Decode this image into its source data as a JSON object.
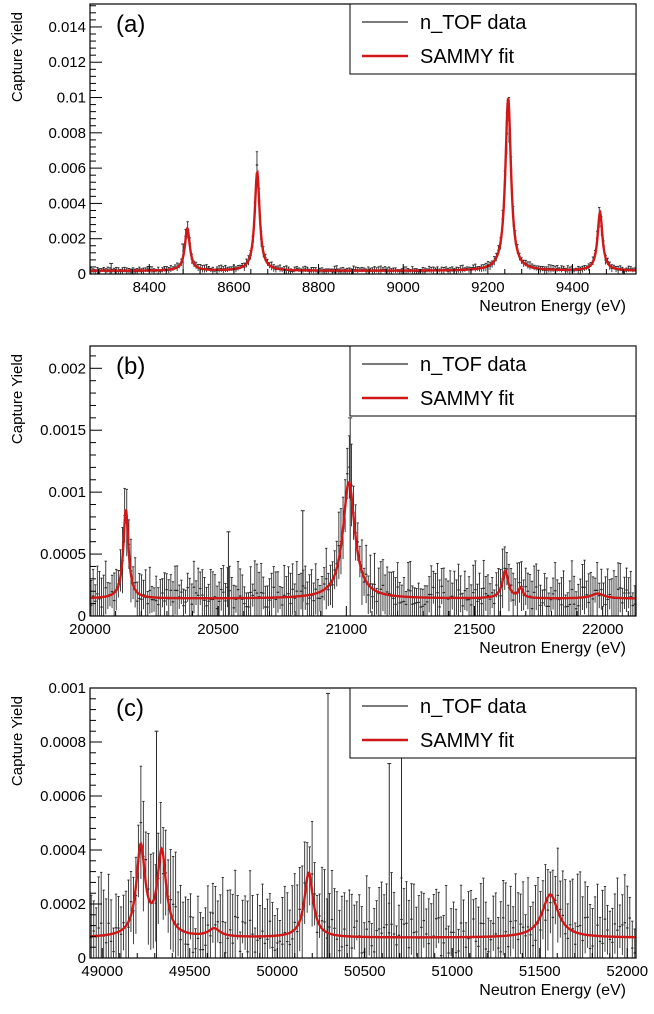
{
  "colors": {
    "data": "#2b2b2b",
    "fit": "#d01818",
    "axis": "#000000",
    "background": "#ffffff"
  },
  "chart_data": [
    {
      "type": "line",
      "panel_label": "(a)",
      "xlabel": "Neutron Energy (eV)",
      "ylabel": "Capture Yield",
      "xlim": [
        8260,
        9550
      ],
      "ylim": [
        0,
        0.0153
      ],
      "x_ticks": [
        8400,
        8600,
        8800,
        9000,
        9200,
        9400
      ],
      "x_tick_labels": [
        "8400",
        "8600",
        "8800",
        "9000",
        "9200",
        "9400"
      ],
      "y_ticks": [
        0,
        0.002,
        0.004,
        0.006,
        0.008,
        0.01,
        0.012,
        0.014
      ],
      "y_tick_labels": [
        "0",
        "0.002",
        "0.004",
        "0.006",
        "0.008",
        "0.01",
        "0.012",
        "0.014"
      ],
      "legend": {
        "position": "top-right",
        "entries": [
          {
            "label": "n_TOF data",
            "style": "thin-black"
          },
          {
            "label": "SAMMY fit",
            "style": "thick-red"
          }
        ]
      },
      "series": [
        {
          "name": "SAMMY fit",
          "baseline": 0.00018,
          "resonances": [
            {
              "energy": 8490,
              "peak_yield": 0.0024,
              "width": 7
            },
            {
              "energy": 8655,
              "peak_yield": 0.0056,
              "width": 7
            },
            {
              "energy": 9248,
              "peak_yield": 0.0098,
              "width": 8
            },
            {
              "energy": 9465,
              "peak_yield": 0.0033,
              "width": 7
            }
          ]
        },
        {
          "name": "n_TOF data",
          "n_points": 260,
          "noise_level": 0.0001,
          "outliers": [
            {
              "x": 8480,
              "y": 0.0017
            },
            {
              "x": 8310,
              "y": 0.0006
            }
          ]
        }
      ]
    },
    {
      "type": "line",
      "panel_label": "(b)",
      "xlabel": "Neutron Energy (eV)",
      "ylabel": "Capture Yield",
      "xlim": [
        20000,
        22130
      ],
      "ylim": [
        0,
        0.00218
      ],
      "x_ticks": [
        20000,
        20500,
        21000,
        21500,
        22000
      ],
      "x_tick_labels": [
        "20000",
        "20500",
        "21000",
        "21500",
        "22000"
      ],
      "y_ticks": [
        0,
        0.0005,
        0.001,
        0.0015,
        0.002
      ],
      "y_tick_labels": [
        "0",
        "0.0005",
        "0.001",
        "0.0015",
        "0.002"
      ],
      "legend": {
        "position": "top-right",
        "entries": [
          {
            "label": "n_TOF data",
            "style": "thin-black"
          },
          {
            "label": "SAMMY fit",
            "style": "thick-red"
          }
        ]
      },
      "series": [
        {
          "name": "SAMMY fit",
          "baseline": 0.00014,
          "resonances": [
            {
              "energy": 20140,
              "peak_yield": 0.00072,
              "width": 12
            },
            {
              "energy": 21010,
              "peak_yield": 0.00094,
              "width": 28
            },
            {
              "energy": 21620,
              "peak_yield": 0.00022,
              "width": 14
            },
            {
              "energy": 21680,
              "peak_yield": 8e-05,
              "width": 10
            },
            {
              "energy": 21980,
              "peak_yield": 4e-05,
              "width": 30
            }
          ]
        },
        {
          "name": "n_TOF data",
          "n_points": 260,
          "noise_level": 0.00012,
          "outliers": [
            {
              "x": 21015,
              "y": 0.0016
            },
            {
              "x": 20830,
              "y": 0.00085
            },
            {
              "x": 20540,
              "y": 0.00068
            }
          ]
        }
      ]
    },
    {
      "type": "line",
      "panel_label": "(c)",
      "xlabel": "Neutron Energy (eV)",
      "ylabel": "Capture Yield",
      "xlim": [
        48930,
        52050
      ],
      "ylim": [
        0,
        0.001
      ],
      "x_ticks": [
        49000,
        49500,
        50000,
        50500,
        51000,
        51500,
        52000
      ],
      "x_tick_labels": [
        "49000",
        "49500",
        "50000",
        "50500",
        "51000",
        "51500",
        "52000"
      ],
      "y_ticks": [
        0,
        0.0002,
        0.0004,
        0.0006,
        0.0008,
        0.001
      ],
      "y_tick_labels": [
        "0",
        "0.0002",
        "0.0004",
        "0.0006",
        "0.0008",
        "0.001"
      ],
      "legend": {
        "position": "top-right",
        "entries": [
          {
            "label": "n_TOF data",
            "style": "thin-black"
          },
          {
            "label": "SAMMY fit",
            "style": "thick-red"
          }
        ]
      },
      "series": [
        {
          "name": "SAMMY fit",
          "baseline": 7.5e-05,
          "resonances": [
            {
              "energy": 49220,
              "peak_yield": 0.00033,
              "width": 30
            },
            {
              "energy": 49340,
              "peak_yield": 0.00031,
              "width": 30
            },
            {
              "energy": 49640,
              "peak_yield": 3e-05,
              "width": 40
            },
            {
              "energy": 50180,
              "peak_yield": 0.00024,
              "width": 30
            },
            {
              "energy": 51560,
              "peak_yield": 0.00016,
              "width": 55
            }
          ]
        },
        {
          "name": "n_TOF data",
          "n_points": 220,
          "noise_level": 0.0001,
          "outliers": [
            {
              "x": 50290,
              "y": 0.00098
            },
            {
              "x": 50710,
              "y": 0.00098
            },
            {
              "x": 50640,
              "y": 0.00072
            },
            {
              "x": 49310,
              "y": 0.00084
            }
          ]
        }
      ]
    }
  ]
}
